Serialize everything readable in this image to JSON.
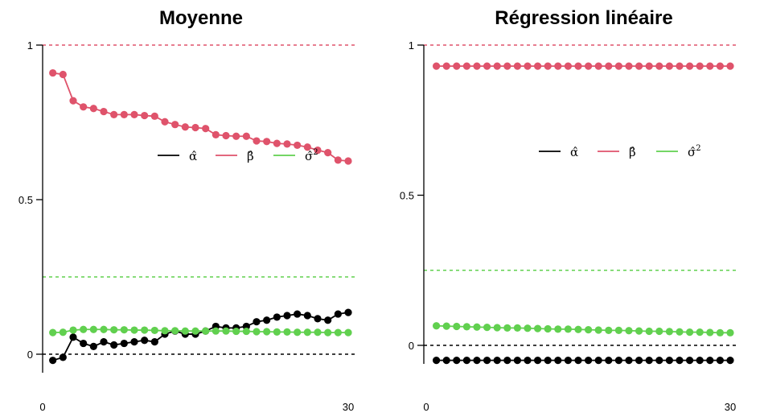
{
  "chart_data": [
    {
      "type": "line",
      "title": "Moyenne",
      "xlabel": "",
      "ylabel": "",
      "xlim": [
        0,
        30
      ],
      "ylim": [
        -0.06,
        1.0
      ],
      "x_ticks": [
        "0",
        "30"
      ],
      "y_ticks": [
        {
          "value": 0,
          "label": "0"
        },
        {
          "value": 0.5,
          "label": "0.5"
        },
        {
          "value": 1,
          "label": "1"
        }
      ],
      "legend": {
        "placement": "upper-right",
        "labels": [
          "α̂",
          "β̂",
          "σ̂2"
        ]
      },
      "reference_lines": [
        {
          "y": 1.0,
          "color": "#DF536B"
        },
        {
          "y": 0.25,
          "color": "#61D04F"
        },
        {
          "y": 0.0,
          "color": "#000000"
        }
      ],
      "x": [
        1,
        2,
        3,
        4,
        5,
        6,
        7,
        8,
        9,
        10,
        11,
        12,
        13,
        14,
        15,
        16,
        17,
        18,
        19,
        20,
        21,
        22,
        23,
        24,
        25,
        26,
        27,
        28,
        29,
        30
      ],
      "series": [
        {
          "name": "α̂",
          "color": "#000000",
          "connected": true,
          "values": [
            -0.02,
            -0.01,
            0.055,
            0.035,
            0.025,
            0.04,
            0.03,
            0.035,
            0.04,
            0.045,
            0.04,
            0.065,
            0.075,
            0.065,
            0.065,
            0.075,
            0.09,
            0.085,
            0.085,
            0.09,
            0.105,
            0.11,
            0.12,
            0.125,
            0.13,
            0.125,
            0.115,
            0.11,
            0.13,
            0.135
          ]
        },
        {
          "name": "β̂",
          "color": "#DF536B",
          "connected": true,
          "values": [
            0.91,
            0.905,
            0.82,
            0.8,
            0.795,
            0.785,
            0.775,
            0.775,
            0.775,
            0.772,
            0.77,
            0.752,
            0.743,
            0.735,
            0.733,
            0.73,
            0.71,
            0.707,
            0.705,
            0.705,
            0.69,
            0.688,
            0.682,
            0.68,
            0.676,
            0.67,
            0.66,
            0.652,
            0.628,
            0.625
          ]
        },
        {
          "name": "σ̂2",
          "color": "#61D04F",
          "connected": true,
          "values": [
            0.07,
            0.071,
            0.078,
            0.08,
            0.08,
            0.08,
            0.079,
            0.079,
            0.078,
            0.078,
            0.077,
            0.076,
            0.076,
            0.075,
            0.075,
            0.075,
            0.075,
            0.075,
            0.074,
            0.074,
            0.073,
            0.073,
            0.072,
            0.072,
            0.071,
            0.071,
            0.071,
            0.07,
            0.07,
            0.07
          ]
        }
      ]
    },
    {
      "type": "line",
      "title": "Régression linéaire",
      "xlabel": "",
      "ylabel": "",
      "xlim": [
        0,
        30
      ],
      "ylim": [
        -0.09,
        1.0
      ],
      "x_ticks": [
        "0",
        "30"
      ],
      "y_ticks": [
        {
          "value": 0,
          "label": "0"
        },
        {
          "value": 0.5,
          "label": "0.5"
        },
        {
          "value": 1,
          "label": "1"
        }
      ],
      "legend": {
        "placement": "upper-right",
        "labels": [
          "α̂",
          "β̂",
          "σ̂2"
        ]
      },
      "reference_lines": [
        {
          "y": 1.0,
          "color": "#DF536B"
        },
        {
          "y": 0.25,
          "color": "#61D04F"
        },
        {
          "y": 0.0,
          "color": "#000000"
        }
      ],
      "x": [
        1,
        2,
        3,
        4,
        5,
        6,
        7,
        8,
        9,
        10,
        11,
        12,
        13,
        14,
        15,
        16,
        17,
        18,
        19,
        20,
        21,
        22,
        23,
        24,
        25,
        26,
        27,
        28,
        29,
        30
      ],
      "series": [
        {
          "name": "α̂",
          "color": "#000000",
          "connected": true,
          "values": [
            -0.05,
            -0.05,
            -0.05,
            -0.05,
            -0.05,
            -0.05,
            -0.05,
            -0.05,
            -0.05,
            -0.05,
            -0.05,
            -0.05,
            -0.05,
            -0.05,
            -0.05,
            -0.05,
            -0.05,
            -0.05,
            -0.05,
            -0.05,
            -0.05,
            -0.05,
            -0.05,
            -0.05,
            -0.05,
            -0.05,
            -0.05,
            -0.05,
            -0.05,
            -0.05
          ]
        },
        {
          "name": "β̂",
          "color": "#DF536B",
          "connected": true,
          "values": [
            0.93,
            0.93,
            0.93,
            0.93,
            0.93,
            0.93,
            0.93,
            0.93,
            0.93,
            0.93,
            0.93,
            0.93,
            0.93,
            0.93,
            0.93,
            0.93,
            0.93,
            0.93,
            0.93,
            0.93,
            0.93,
            0.93,
            0.93,
            0.93,
            0.93,
            0.93,
            0.93,
            0.93,
            0.93,
            0.93
          ]
        },
        {
          "name": "σ̂2",
          "color": "#61D04F",
          "connected": true,
          "values": [
            0.065,
            0.064,
            0.063,
            0.062,
            0.061,
            0.06,
            0.059,
            0.058,
            0.058,
            0.057,
            0.056,
            0.055,
            0.054,
            0.054,
            0.053,
            0.052,
            0.051,
            0.05,
            0.05,
            0.049,
            0.048,
            0.047,
            0.047,
            0.046,
            0.045,
            0.044,
            0.044,
            0.043,
            0.042,
            0.042
          ]
        }
      ]
    }
  ]
}
